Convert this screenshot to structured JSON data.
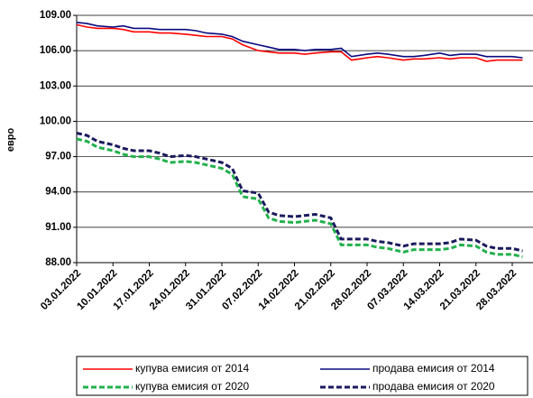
{
  "chart_data": {
    "type": "line",
    "y_label": "евро",
    "x": [
      "03.01.2022",
      "05.01.2022",
      "07.01.2022",
      "10.01.2022",
      "12.01.2022",
      "14.01.2022",
      "17.01.2022",
      "19.01.2022",
      "21.01.2022",
      "24.01.2022",
      "26.01.2022",
      "28.01.2022",
      "31.01.2022",
      "02.02.2022",
      "04.02.2022",
      "07.02.2022",
      "09.02.2022",
      "11.02.2022",
      "14.02.2022",
      "16.02.2022",
      "18.02.2022",
      "21.02.2022",
      "23.02.2022",
      "25.02.2022",
      "28.02.2022",
      "02.03.2022",
      "04.03.2022",
      "07.03.2022",
      "09.03.2022",
      "11.03.2022",
      "14.03.2022",
      "16.03.2022",
      "18.03.2022",
      "21.03.2022",
      "23.03.2022",
      "25.03.2022",
      "28.03.2022",
      "30.03.2022"
    ],
    "series": [
      {
        "name": "купува  емисия от 2014",
        "color": "#ff0000",
        "dashed": false,
        "values": [
          108.2,
          108.0,
          107.9,
          107.9,
          107.8,
          107.6,
          107.6,
          107.5,
          107.5,
          107.4,
          107.3,
          107.2,
          107.2,
          107.0,
          106.5,
          106.0,
          105.9,
          105.8,
          105.8,
          105.7,
          105.8,
          105.9,
          105.9,
          105.2,
          105.4,
          105.5,
          105.4,
          105.2,
          105.3,
          105.3,
          105.4,
          105.3,
          105.4,
          105.4,
          105.1,
          105.2,
          105.2,
          105.2
        ]
      },
      {
        "name": "продава  емисия от 2014",
        "color": "#0a0a80",
        "dashed": false,
        "values": [
          108.4,
          108.3,
          108.1,
          108.0,
          108.1,
          107.9,
          107.9,
          107.8,
          107.8,
          107.8,
          107.7,
          107.5,
          107.4,
          107.2,
          106.8,
          106.5,
          106.3,
          106.1,
          106.1,
          106.0,
          106.1,
          106.1,
          106.2,
          105.5,
          105.7,
          105.8,
          105.7,
          105.5,
          105.5,
          105.6,
          105.8,
          105.6,
          105.7,
          105.7,
          105.5,
          105.5,
          105.5,
          105.4
        ]
      },
      {
        "name": "купува  емисия от 2020",
        "color": "#22b14c",
        "dashed": true,
        "values": [
          98.5,
          98.3,
          97.8,
          97.5,
          97.2,
          97.0,
          97.0,
          96.8,
          96.5,
          96.6,
          96.5,
          96.3,
          96.0,
          95.5,
          93.6,
          93.4,
          91.8,
          91.5,
          91.4,
          91.5,
          91.6,
          91.3,
          89.5,
          89.5,
          89.5,
          89.3,
          89.2,
          88.9,
          89.1,
          89.1,
          89.1,
          89.2,
          89.5,
          89.4,
          88.9,
          88.7,
          88.7,
          88.5
        ]
      },
      {
        "name": "продава  емисия от 2020",
        "color": "#1a1a5e",
        "dashed": true,
        "values": [
          99.0,
          98.8,
          98.3,
          98.0,
          97.7,
          97.5,
          97.5,
          97.3,
          97.0,
          97.1,
          97.0,
          96.8,
          96.5,
          96.0,
          94.1,
          93.9,
          92.3,
          92.0,
          91.9,
          92.0,
          92.1,
          91.8,
          90.0,
          90.0,
          90.0,
          89.8,
          89.7,
          89.4,
          89.6,
          89.6,
          89.6,
          89.7,
          90.0,
          89.9,
          89.4,
          89.2,
          89.2,
          89.0
        ]
      }
    ],
    "xlim": [
      "03.01.2022",
      "01.04.2022"
    ],
    "xticks": [
      "03.01.2022",
      "10.01.2022",
      "17.01.2022",
      "24.01.2022",
      "31.01.2022",
      "07.02.2022",
      "14.02.2022",
      "21.02.2022",
      "28.02.2022",
      "07.03.2022",
      "14.03.2022",
      "21.03.2022",
      "28.03.2022"
    ],
    "ylim": [
      88,
      109
    ],
    "yticks": [
      {
        "value": 88,
        "label": "88.00"
      },
      {
        "value": 91,
        "label": "91.00"
      },
      {
        "value": 94,
        "label": "94.00"
      },
      {
        "value": 97,
        "label": "97.00"
      },
      {
        "value": 100,
        "label": "100.00"
      },
      {
        "value": 103,
        "label": "103.00"
      },
      {
        "value": 106,
        "label": "106.00"
      },
      {
        "value": 109,
        "label": "109.00"
      }
    ],
    "grid": true
  }
}
